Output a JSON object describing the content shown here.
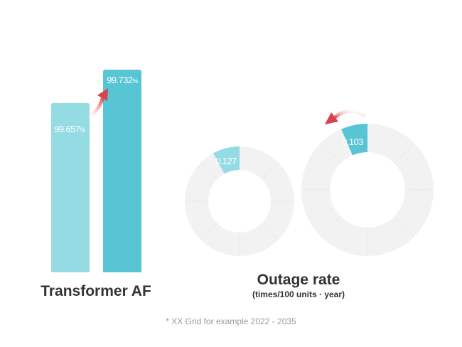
{
  "chart_data": [
    {
      "type": "bar",
      "title": "Transformer AF",
      "categories": [
        "",
        ""
      ],
      "values": [
        99.657,
        99.732
      ],
      "value_labels": [
        "99.657",
        "99.732"
      ],
      "unit": "%",
      "colors": [
        "#94dbe4",
        "#58c5d4"
      ]
    },
    {
      "type": "pie",
      "title": "Outage rate",
      "subtitle": "(times/100 units · year)",
      "values": [
        0.127,
        0.103
      ],
      "value_labels": [
        "0.127",
        "0.103"
      ],
      "colors": [
        "#94dbe4",
        "#58c5d4"
      ],
      "track_color": "#f2f2f2"
    }
  ],
  "footnote": "* XX Grid for example 2022 - 2035",
  "arrow_color": "#d6424d",
  "icons": [
    "up-trend-arrow-icon",
    "down-trend-arrow-icon"
  ]
}
